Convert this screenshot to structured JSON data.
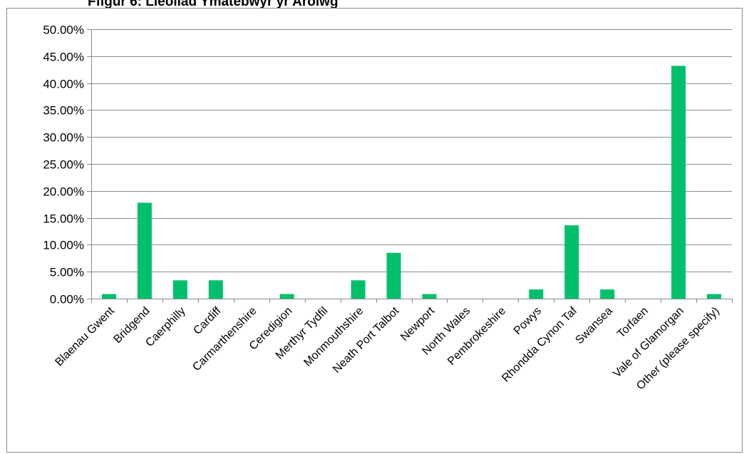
{
  "page": {
    "caption": "Ffigur 6: Lleoliad Ymatebwyr yr Arolwg"
  },
  "chart_data": {
    "type": "bar",
    "title": "",
    "xlabel": "",
    "ylabel": "",
    "ylim": [
      0,
      50
    ],
    "yticks": [
      "0.00%",
      "5.00%",
      "10.00%",
      "15.00%",
      "20.00%",
      "25.00%",
      "30.00%",
      "35.00%",
      "40.00%",
      "45.00%",
      "50.00%"
    ],
    "grid": true,
    "legend": "none",
    "bar_color": "#00c06b",
    "categories": [
      "Blaenau Gwent",
      "Bridgend",
      "Caerphilly",
      "Cardiff",
      "Carmarthenshire",
      "Ceredigion",
      "Merthyr Tydfil",
      "Monmouthshire",
      "Neath Port Talbot",
      "Newport",
      "North Wales",
      "Pembrokeshire",
      "Powys",
      "Rhondda Cynon Taf",
      "Swansea",
      "Torfaen",
      "Vale of Glamorgan",
      "Other (please specify)"
    ],
    "values": [
      0.85,
      17.8,
      3.4,
      3.4,
      0,
      0.85,
      0,
      3.4,
      8.5,
      0.85,
      0,
      0,
      1.7,
      13.6,
      1.7,
      0,
      43.2,
      0.85
    ]
  }
}
